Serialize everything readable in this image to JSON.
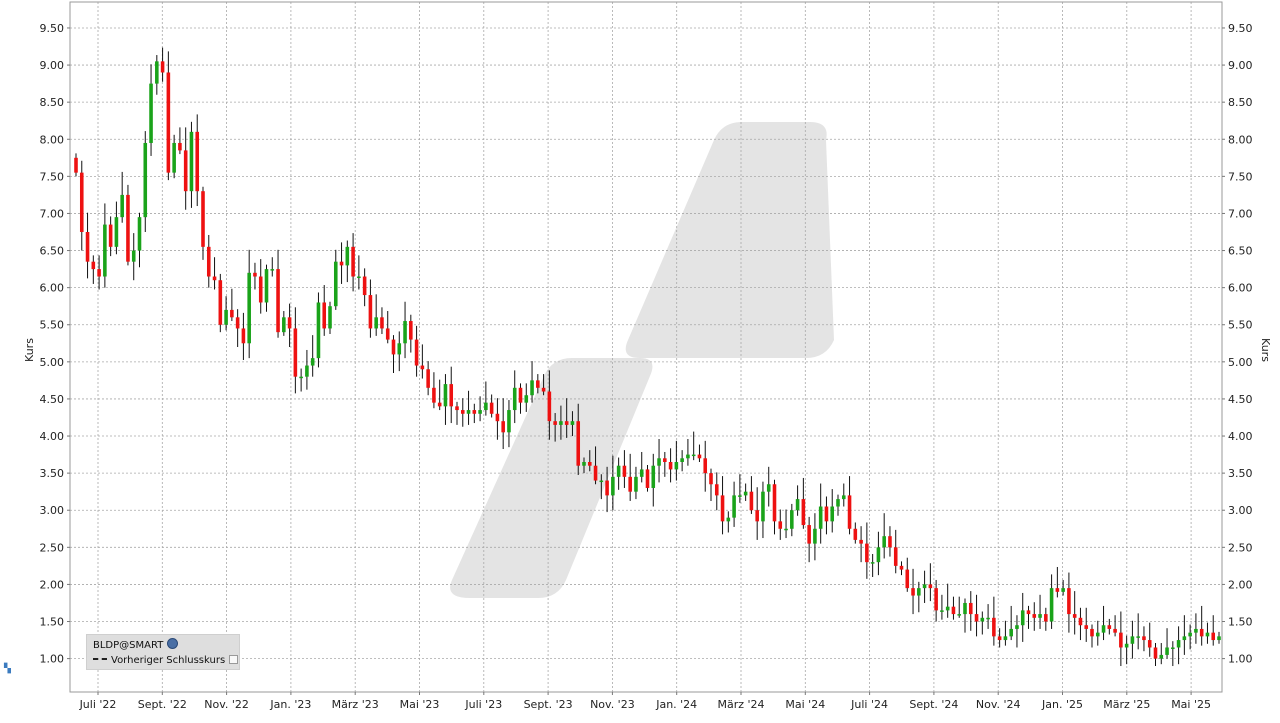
{
  "chart_data": {
    "type": "candlestick",
    "ylabel_left": "Kurs",
    "ylabel_right": "Kurs",
    "ylim": [
      0.55,
      9.85
    ],
    "y_ticks": [
      "1.00",
      "1.50",
      "2.00",
      "2.50",
      "3.00",
      "3.50",
      "4.00",
      "4.50",
      "5.00",
      "5.50",
      "6.00",
      "6.50",
      "7.00",
      "7.50",
      "8.00",
      "8.50",
      "9.00",
      "9.50"
    ],
    "x_ticks": [
      "Juli '22",
      "Sept. '22",
      "Nov. '22",
      "Jan. '23",
      "März '23",
      "Mai '23",
      "Juli '23",
      "Sept. '23",
      "Nov. '23",
      "Jan. '24",
      "März '24",
      "Mai '24",
      "Juli '24",
      "Sept. '24",
      "Nov. '24",
      "Jan. '25",
      "März '25",
      "Mai '25"
    ],
    "grid": true,
    "colors": {
      "up": "#1aa31a",
      "down": "#ee1111",
      "grid": "#a8a8a8",
      "watermark": "#e4e4e4"
    },
    "series_closes": [
      7.55,
      6.75,
      6.35,
      6.25,
      6.15,
      6.85,
      6.55,
      6.95,
      7.25,
      6.35,
      6.5,
      6.95,
      7.95,
      8.75,
      9.05,
      8.9,
      7.55,
      7.95,
      7.85,
      7.3,
      8.1,
      7.3,
      6.55,
      6.15,
      6.1,
      5.5,
      5.7,
      5.6,
      5.45,
      5.25,
      6.2,
      6.15,
      5.8,
      6.25,
      6.25,
      5.4,
      5.6,
      5.45,
      4.8,
      4.8,
      4.95,
      5.05,
      5.8,
      5.45,
      5.75,
      6.35,
      6.3,
      6.55,
      6.15,
      6.15,
      5.9,
      5.45,
      5.6,
      5.45,
      5.3,
      5.1,
      5.25,
      5.55,
      5.3,
      4.95,
      4.9,
      4.65,
      4.45,
      4.4,
      4.7,
      4.4,
      4.35,
      4.3,
      4.35,
      4.3,
      4.35,
      4.45,
      4.3,
      4.2,
      4.05,
      4.35,
      4.65,
      4.45,
      4.55,
      4.75,
      4.65,
      4.6,
      4.2,
      4.15,
      4.2,
      4.15,
      4.2,
      3.6,
      3.65,
      3.6,
      3.4,
      3.4,
      3.2,
      3.45,
      3.6,
      3.45,
      3.25,
      3.45,
      3.55,
      3.3,
      3.6,
      3.7,
      3.65,
      3.55,
      3.65,
      3.7,
      3.75,
      3.75,
      3.7,
      3.5,
      3.35,
      3.2,
      2.85,
      2.9,
      3.2,
      3.2,
      3.25,
      3.0,
      2.85,
      3.25,
      3.35,
      2.85,
      2.75,
      2.75,
      3.0,
      3.15,
      2.8,
      2.55,
      2.75,
      3.05,
      2.85,
      3.05,
      3.15,
      3.2,
      2.75,
      2.6,
      2.55,
      2.3,
      2.3,
      2.5,
      2.65,
      2.5,
      2.25,
      2.2,
      1.95,
      1.85,
      1.95,
      2.0,
      1.95,
      1.65,
      1.65,
      1.7,
      1.6,
      1.6,
      1.75,
      1.6,
      1.5,
      1.55,
      1.55,
      1.3,
      1.25,
      1.3,
      1.4,
      1.45,
      1.65,
      1.6,
      1.55,
      1.6,
      1.5,
      1.95,
      1.9,
      1.95,
      1.6,
      1.55,
      1.45,
      1.4,
      1.3,
      1.35,
      1.45,
      1.4,
      1.35,
      1.15,
      1.2,
      1.3,
      1.3,
      1.25,
      1.15,
      1.0,
      1.05,
      1.15,
      1.15,
      1.25,
      1.3,
      1.35,
      1.4,
      1.3,
      1.35,
      1.25,
      1.3
    ]
  },
  "legend": {
    "symbol": "BLDP@SMART",
    "line_label": "Vorheriger Schlusskurs"
  }
}
